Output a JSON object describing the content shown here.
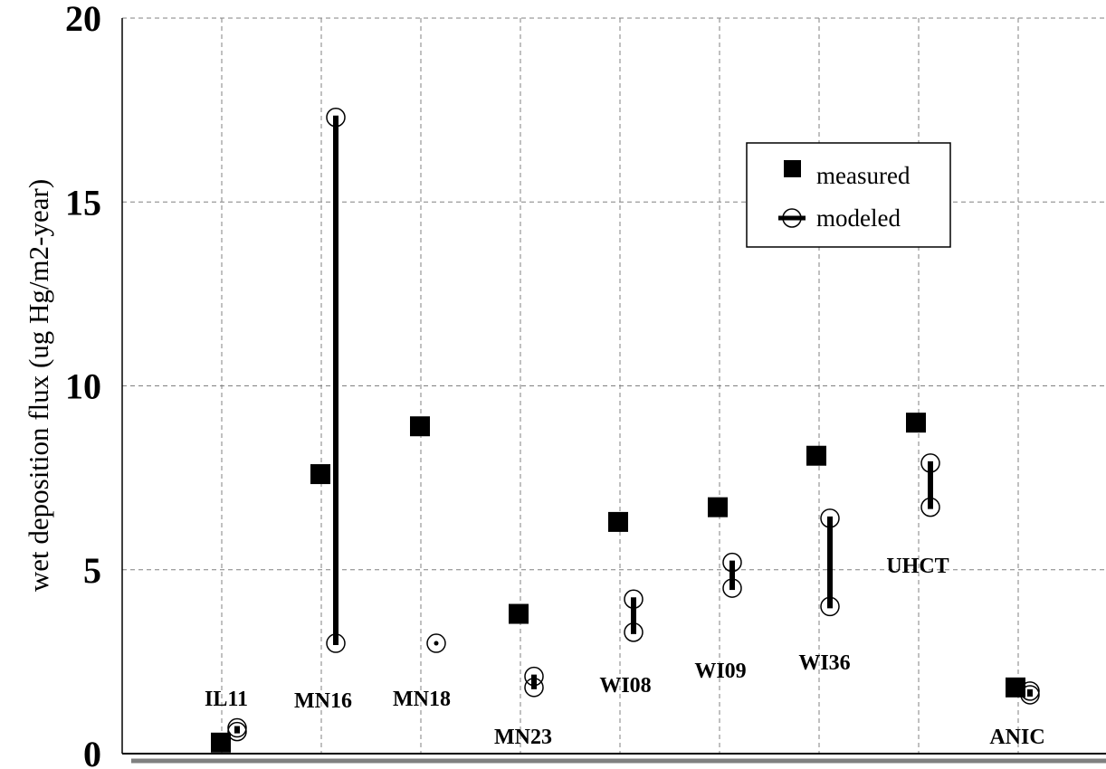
{
  "chart_data": {
    "type": "scatter",
    "title": "",
    "xlabel": "",
    "ylabel": "wet deposition flux (ug Hg/m2-year)",
    "ylim": [
      0,
      20
    ],
    "yticks": [
      "0",
      "5",
      "10",
      "15",
      "20"
    ],
    "grid": true,
    "legend_position": "top-right",
    "sites": [
      "IL11",
      "MN16",
      "MN18",
      "MN23",
      "WI08",
      "WI09",
      "WI36",
      "UHCT",
      "ANIC"
    ],
    "series": [
      {
        "name": "measured",
        "marker": "filled-square",
        "values": [
          0.3,
          7.6,
          8.9,
          3.8,
          6.3,
          6.7,
          8.1,
          9.0,
          1.8
        ]
      },
      {
        "name": "modeled",
        "marker": "open-circle-with-bar",
        "low": [
          0.6,
          3.0,
          3.0,
          1.8,
          3.3,
          4.5,
          4.0,
          6.7,
          1.6
        ],
        "high": [
          0.7,
          17.3,
          3.0,
          2.1,
          4.2,
          5.2,
          6.4,
          7.9,
          1.7
        ]
      }
    ],
    "colors": {
      "marker": "#000000",
      "grid": "#808080"
    }
  }
}
